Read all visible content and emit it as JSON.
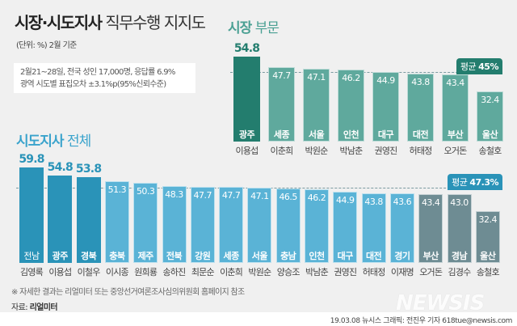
{
  "title": {
    "bold": "시장·시도지사",
    "light": "직무수행 지지도"
  },
  "unit": "(단위: %)  2월 기준",
  "note": [
    "2월21~28일, 전국 성인 17,000명, 응답률 6.9%",
    "광역 시도별 표집오차 ±3.1%p(95%신뢰수준)"
  ],
  "footnote": "※ 자세한 결과는 리얼미터 또는 중앙선거여론조사심의위원회 홈페이지 참조",
  "source": {
    "label": "자료:",
    "value": "리얼미터"
  },
  "credit": "19.03.08 뉴시스 그래픽: 전진우 기자 618tue@newsis.com",
  "logo": "NEWSIS",
  "chart_data": [
    {
      "type": "bar",
      "title": {
        "bold": "시장",
        "light": "부문"
      },
      "categories": [
        "광주",
        "세종",
        "서울",
        "인천",
        "대구",
        "대전",
        "부산",
        "울산"
      ],
      "names": [
        "이용섭",
        "이춘희",
        "박원순",
        "박남춘",
        "권영진",
        "허태정",
        "오거돈",
        "송철호"
      ],
      "values": [
        54.8,
        47.7,
        47.1,
        46.2,
        44.9,
        43.8,
        43.4,
        32.4
      ],
      "average": {
        "label": "평균",
        "value": "45%",
        "number": 45
      },
      "colors": {
        "highlight": "#237d6e",
        "normal": "#5fa99d"
      }
    },
    {
      "type": "bar",
      "title": {
        "bold": "시도지사",
        "light": "전체"
      },
      "categories": [
        "전남",
        "광주",
        "경북",
        "충북",
        "제주",
        "전북",
        "강원",
        "세종",
        "서울",
        "충남",
        "인천",
        "대구",
        "대전",
        "경기",
        "부산",
        "경남",
        "울산"
      ],
      "names": [
        "김영록",
        "이용섭",
        "이철우",
        "이시종",
        "원희룡",
        "송하진",
        "최문순",
        "이춘희",
        "박원순",
        "양승조",
        "박남춘",
        "권영진",
        "허태정",
        "이재명",
        "오거돈",
        "김경수",
        "송철호"
      ],
      "values": [
        59.8,
        54.8,
        53.8,
        51.3,
        50.3,
        48.3,
        47.7,
        47.7,
        47.1,
        46.5,
        46.2,
        44.9,
        43.8,
        43.6,
        43.4,
        43.0,
        32.4
      ],
      "average": {
        "label": "평균",
        "value": "47.3%",
        "number": 47.3
      },
      "colors": {
        "top": "#2a93b8",
        "normal": "#5ab3d6",
        "bottom": "#6e8c93"
      }
    }
  ]
}
